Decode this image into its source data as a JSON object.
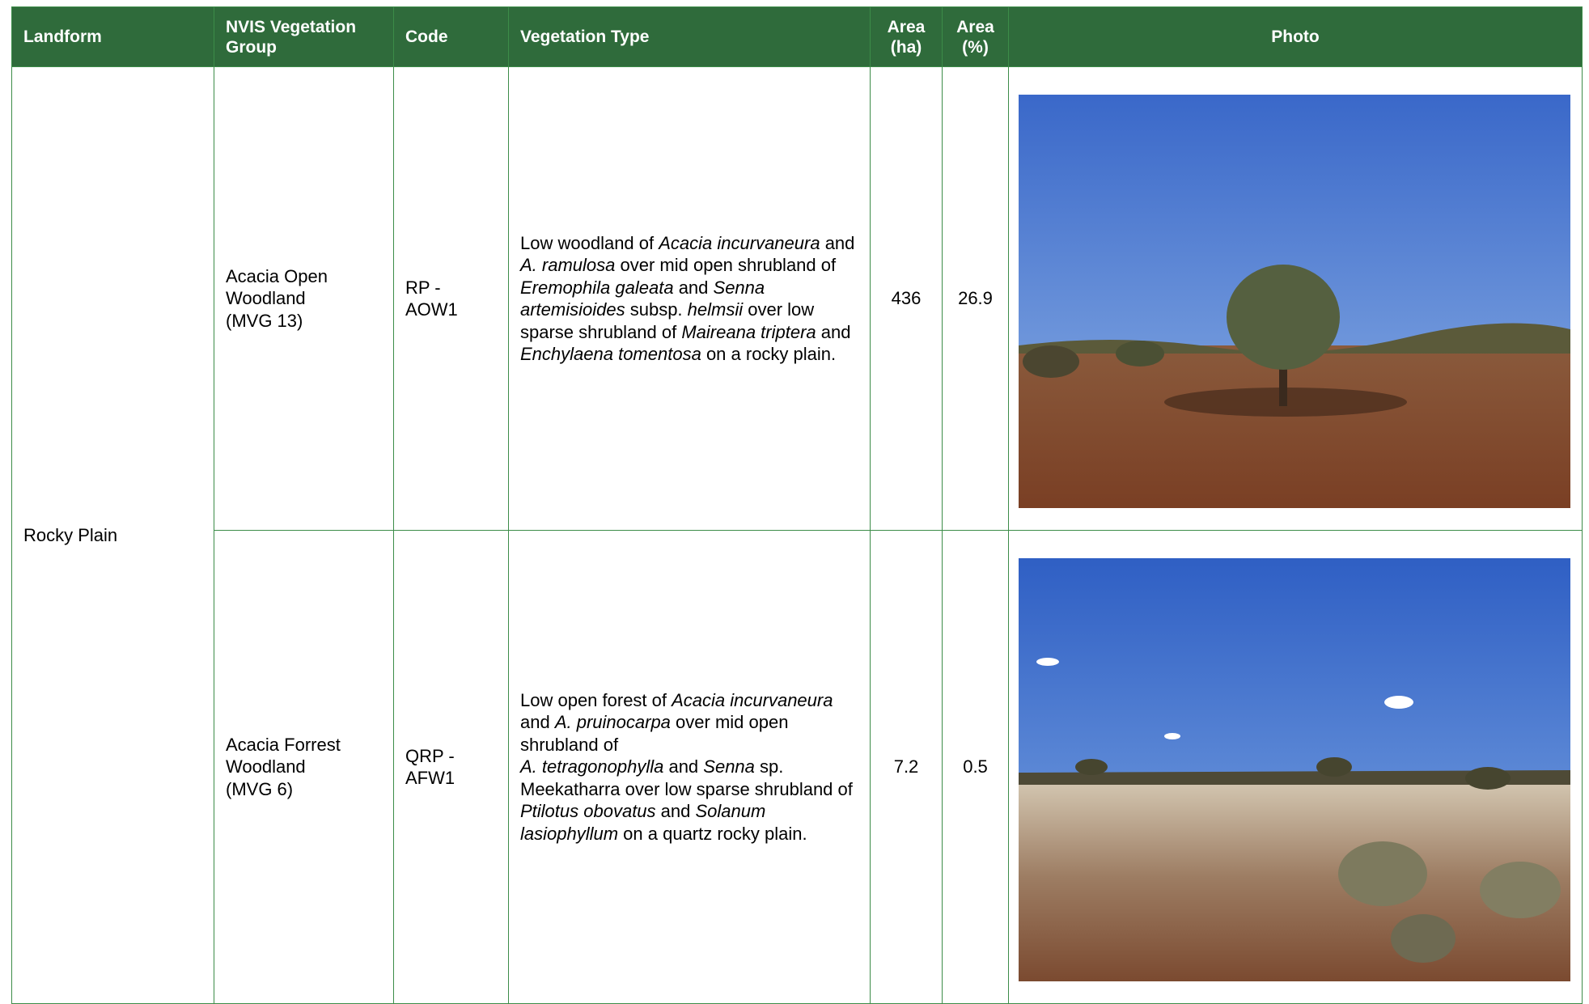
{
  "table": {
    "headers": [
      "Landform",
      "NVIS Vegetation Group",
      "Code",
      "Vegetation Type",
      "Area (ha)",
      "Area (%)",
      "Photo"
    ],
    "rows": [
      {
        "landform": "Rocky Plain",
        "nvis_group": "Acacia Open\nWoodland\n(MVG 13)",
        "code": "RP -\nAOW1",
        "vegetation_type": [
          {
            "text": "Low woodland of "
          },
          {
            "text": "Acacia incurvaneura",
            "italic": true
          },
          {
            "text": " and "
          },
          {
            "text": "A. ramulosa",
            "italic": true
          },
          {
            "text": " over mid open shrubland of "
          },
          {
            "text": "Eremophila galeata",
            "italic": true
          },
          {
            "text": " and "
          },
          {
            "text": "Senna artemisioides",
            "italic": true
          },
          {
            "text": " subsp. "
          },
          {
            "text": "helmsii",
            "italic": true
          },
          {
            "text": " over low sparse shrubland of "
          },
          {
            "text": "Maireana triptera",
            "italic": true
          },
          {
            "text": " and "
          },
          {
            "text": "Enchylaena tomentosa",
            "italic": true
          },
          {
            "text": " on a rocky plain."
          }
        ],
        "area_ha": 436,
        "area_pct": 26.9
      },
      {
        "nvis_group": "Acacia Forrest\nWoodland\n(MVG 6)",
        "code": "QRP -\nAFW1",
        "vegetation_type": [
          {
            "text": "Low open forest of "
          },
          {
            "text": "Acacia incurvaneura",
            "italic": true
          },
          {
            "text": " and "
          },
          {
            "text": "A. pruinocarpa",
            "italic": true
          },
          {
            "text": " over mid open shrubland of\n"
          },
          {
            "text": "A. tetragonophylla",
            "italic": true
          },
          {
            "text": " and "
          },
          {
            "text": "Senna",
            "italic": true
          },
          {
            "text": " sp. Meekatharra over low sparse shrubland of "
          },
          {
            "text": "Ptilotus obovatus",
            "italic": true
          },
          {
            "text": " and "
          },
          {
            "text": "Solanum lasiophyllum",
            "italic": true
          },
          {
            "text": " on a quartz rocky plain."
          }
        ],
        "area_ha": 7.2,
        "area_pct": 0.5
      }
    ]
  }
}
